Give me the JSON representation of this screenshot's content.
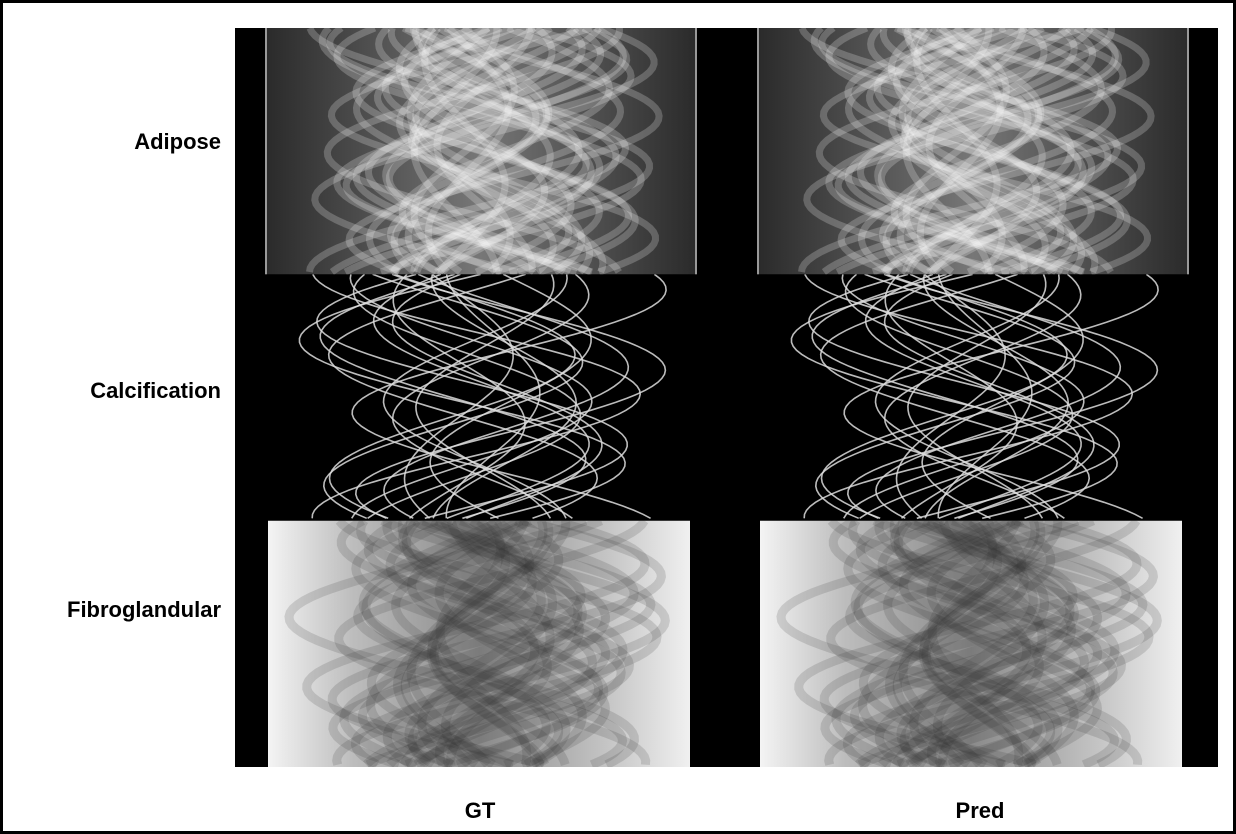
{
  "row_labels": [
    "Adipose",
    "Calcification",
    "Fibroglandular"
  ],
  "column_labels": [
    "GT",
    "Pred"
  ]
}
